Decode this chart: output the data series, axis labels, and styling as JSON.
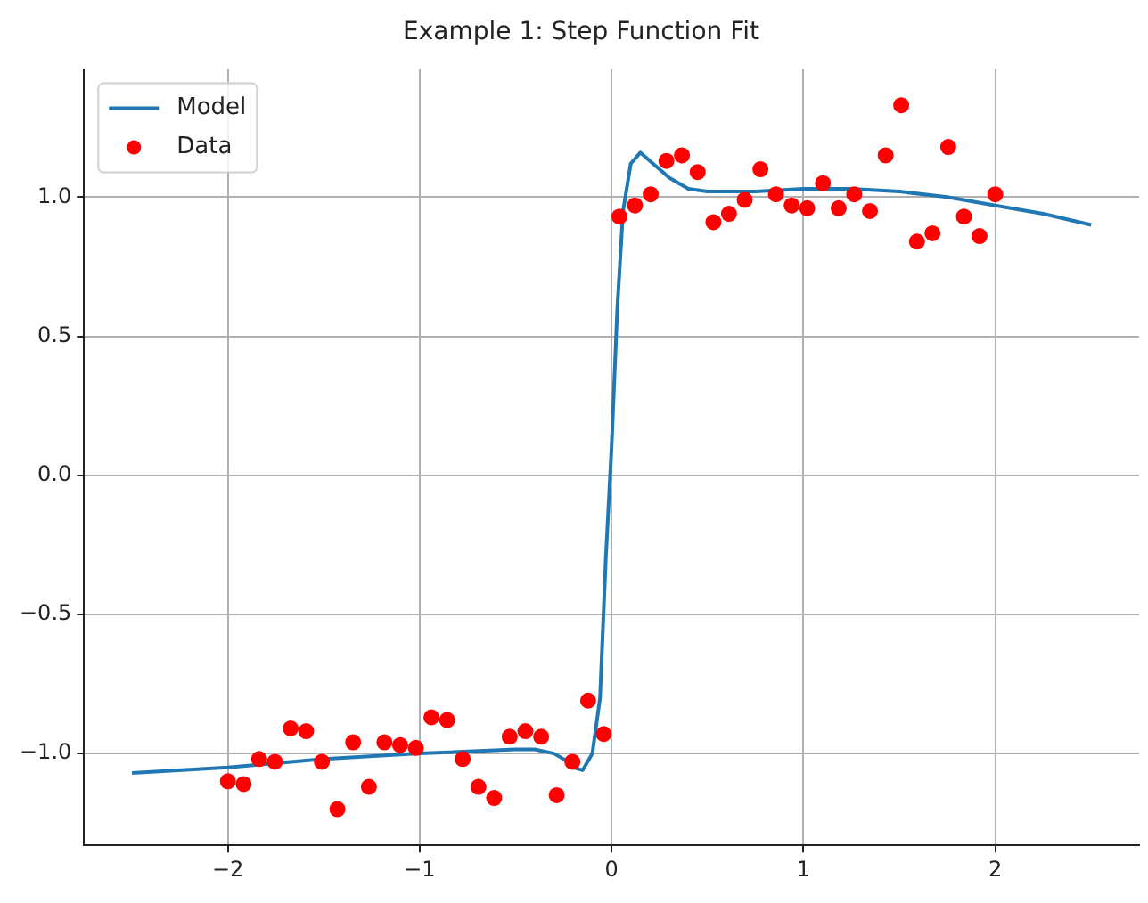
{
  "chart_data": {
    "type": "scatter",
    "title": "Example 1: Step Function Fit",
    "xlim": [
      -2.75,
      2.75
    ],
    "ylim": [
      -1.33,
      1.46
    ],
    "xticks": [
      {
        "value": -2,
        "label": "−2"
      },
      {
        "value": -1,
        "label": "−1"
      },
      0,
      1,
      2
    ],
    "yticks": [
      {
        "value": -1,
        "label": "−1.0"
      },
      {
        "value": -0.5,
        "label": "−0.5"
      },
      {
        "value": 0,
        "label": "0.0"
      },
      {
        "value": 0.5,
        "label": "0.5"
      },
      {
        "value": 1,
        "label": "1.0"
      }
    ],
    "grid": true,
    "legend": "top left",
    "series": [
      {
        "name": "Model",
        "type": "line",
        "color": "#1f77b4",
        "line_style": "solid",
        "marker": "none",
        "x": [
          -2.5,
          -2,
          -1.5,
          -1,
          -0.5,
          -0.4,
          -0.3,
          -0.25,
          -0.2,
          -0.15,
          -0.1,
          -0.06,
          -0.03,
          0,
          0.03,
          0.06,
          0.1,
          0.15,
          0.2,
          0.25,
          0.3,
          0.35,
          0.4,
          0.5,
          0.75,
          1,
          1.25,
          1.5,
          1.75,
          2,
          2.25,
          2.5
        ],
        "values": [
          -1.07,
          -1.05,
          -1.02,
          -1,
          -0.985,
          -0.985,
          -1,
          -1.02,
          -1.05,
          -1.06,
          -1,
          -0.8,
          -0.3,
          0.1,
          0.6,
          0.95,
          1.12,
          1.16,
          1.13,
          1.1,
          1.07,
          1.05,
          1.03,
          1.02,
          1.02,
          1.03,
          1.03,
          1.02,
          1,
          0.97,
          0.94,
          0.9
        ]
      },
      {
        "name": "Data",
        "type": "scatter",
        "color": "#ff0000",
        "marker": "circle",
        "x": [
          -2,
          -1.918,
          -1.837,
          -1.755,
          -1.673,
          -1.592,
          -1.51,
          -1.429,
          -1.347,
          -1.265,
          -1.184,
          -1.102,
          -1.02,
          -0.939,
          -0.857,
          -0.776,
          -0.694,
          -0.612,
          -0.531,
          -0.449,
          -0.367,
          -0.286,
          -0.204,
          -0.122,
          -0.041,
          0.041,
          0.122,
          0.204,
          0.286,
          0.367,
          0.449,
          0.531,
          0.612,
          0.694,
          0.776,
          0.857,
          0.939,
          1.02,
          1.102,
          1.184,
          1.265,
          1.347,
          1.429,
          1.51,
          1.592,
          1.673,
          1.755,
          1.837,
          1.918,
          2
        ],
        "values": [
          -1.1,
          -1.11,
          -1.02,
          -1.03,
          -0.91,
          -0.92,
          -1.03,
          -1.2,
          -0.96,
          -1.12,
          -0.96,
          -0.97,
          -0.98,
          -0.87,
          -0.88,
          -1.02,
          -1.12,
          -1.16,
          -0.94,
          -0.92,
          -0.94,
          -1.15,
          -1.03,
          -0.81,
          -0.93,
          0.93,
          0.97,
          1.01,
          1.13,
          1.15,
          1.09,
          0.91,
          0.94,
          0.99,
          1.1,
          1.01,
          0.97,
          0.96,
          1.05,
          0.96,
          1.01,
          0.95,
          1.15,
          1.33,
          0.84,
          0.87,
          1.18,
          0.93,
          0.86,
          1.01
        ]
      }
    ]
  }
}
